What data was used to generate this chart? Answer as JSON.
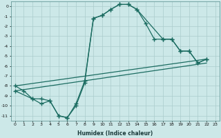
{
  "xlabel": "Humidex (Indice chaleur)",
  "bg_color": "#cce8e8",
  "grid_color": "#aacccc",
  "line_color": "#1a6b60",
  "xlim": [
    -0.5,
    23.5
  ],
  "ylim": [
    -11.5,
    0.5
  ],
  "line1_x": [
    0,
    1,
    2,
    3,
    4,
    5,
    6,
    7,
    8,
    9,
    10,
    11,
    12,
    13,
    14,
    15,
    16,
    17,
    18,
    19,
    20,
    21,
    22
  ],
  "line1_y": [
    -8.0,
    -8.5,
    -9.3,
    -9.3,
    -9.5,
    -11.0,
    -11.2,
    -9.8,
    -7.5,
    -1.2,
    -0.9,
    -0.3,
    0.2,
    0.2,
    -0.3,
    -1.7,
    -3.3,
    -3.3,
    -3.3,
    -4.5,
    -4.5,
    -5.7,
    -5.3
  ],
  "line2_x": [
    0,
    2,
    3,
    4,
    5,
    6,
    7,
    8,
    9,
    10,
    11,
    12,
    13,
    14,
    17,
    18,
    19,
    20,
    21,
    22
  ],
  "line2_y": [
    -8.5,
    -9.3,
    -9.8,
    -9.5,
    -11.0,
    -11.2,
    -10.0,
    -7.7,
    -1.2,
    -0.9,
    -0.3,
    0.2,
    0.2,
    -0.3,
    -3.3,
    -3.3,
    -4.5,
    -4.5,
    -5.7,
    -5.3
  ],
  "line3_x": [
    0,
    22
  ],
  "line3_y": [
    -8.0,
    -5.3
  ],
  "line4_x": [
    0,
    22
  ],
  "line4_y": [
    -8.5,
    -5.7
  ],
  "yticks": [
    0,
    -1,
    -2,
    -3,
    -4,
    -5,
    -6,
    -7,
    -8,
    -9,
    -10,
    -11
  ]
}
